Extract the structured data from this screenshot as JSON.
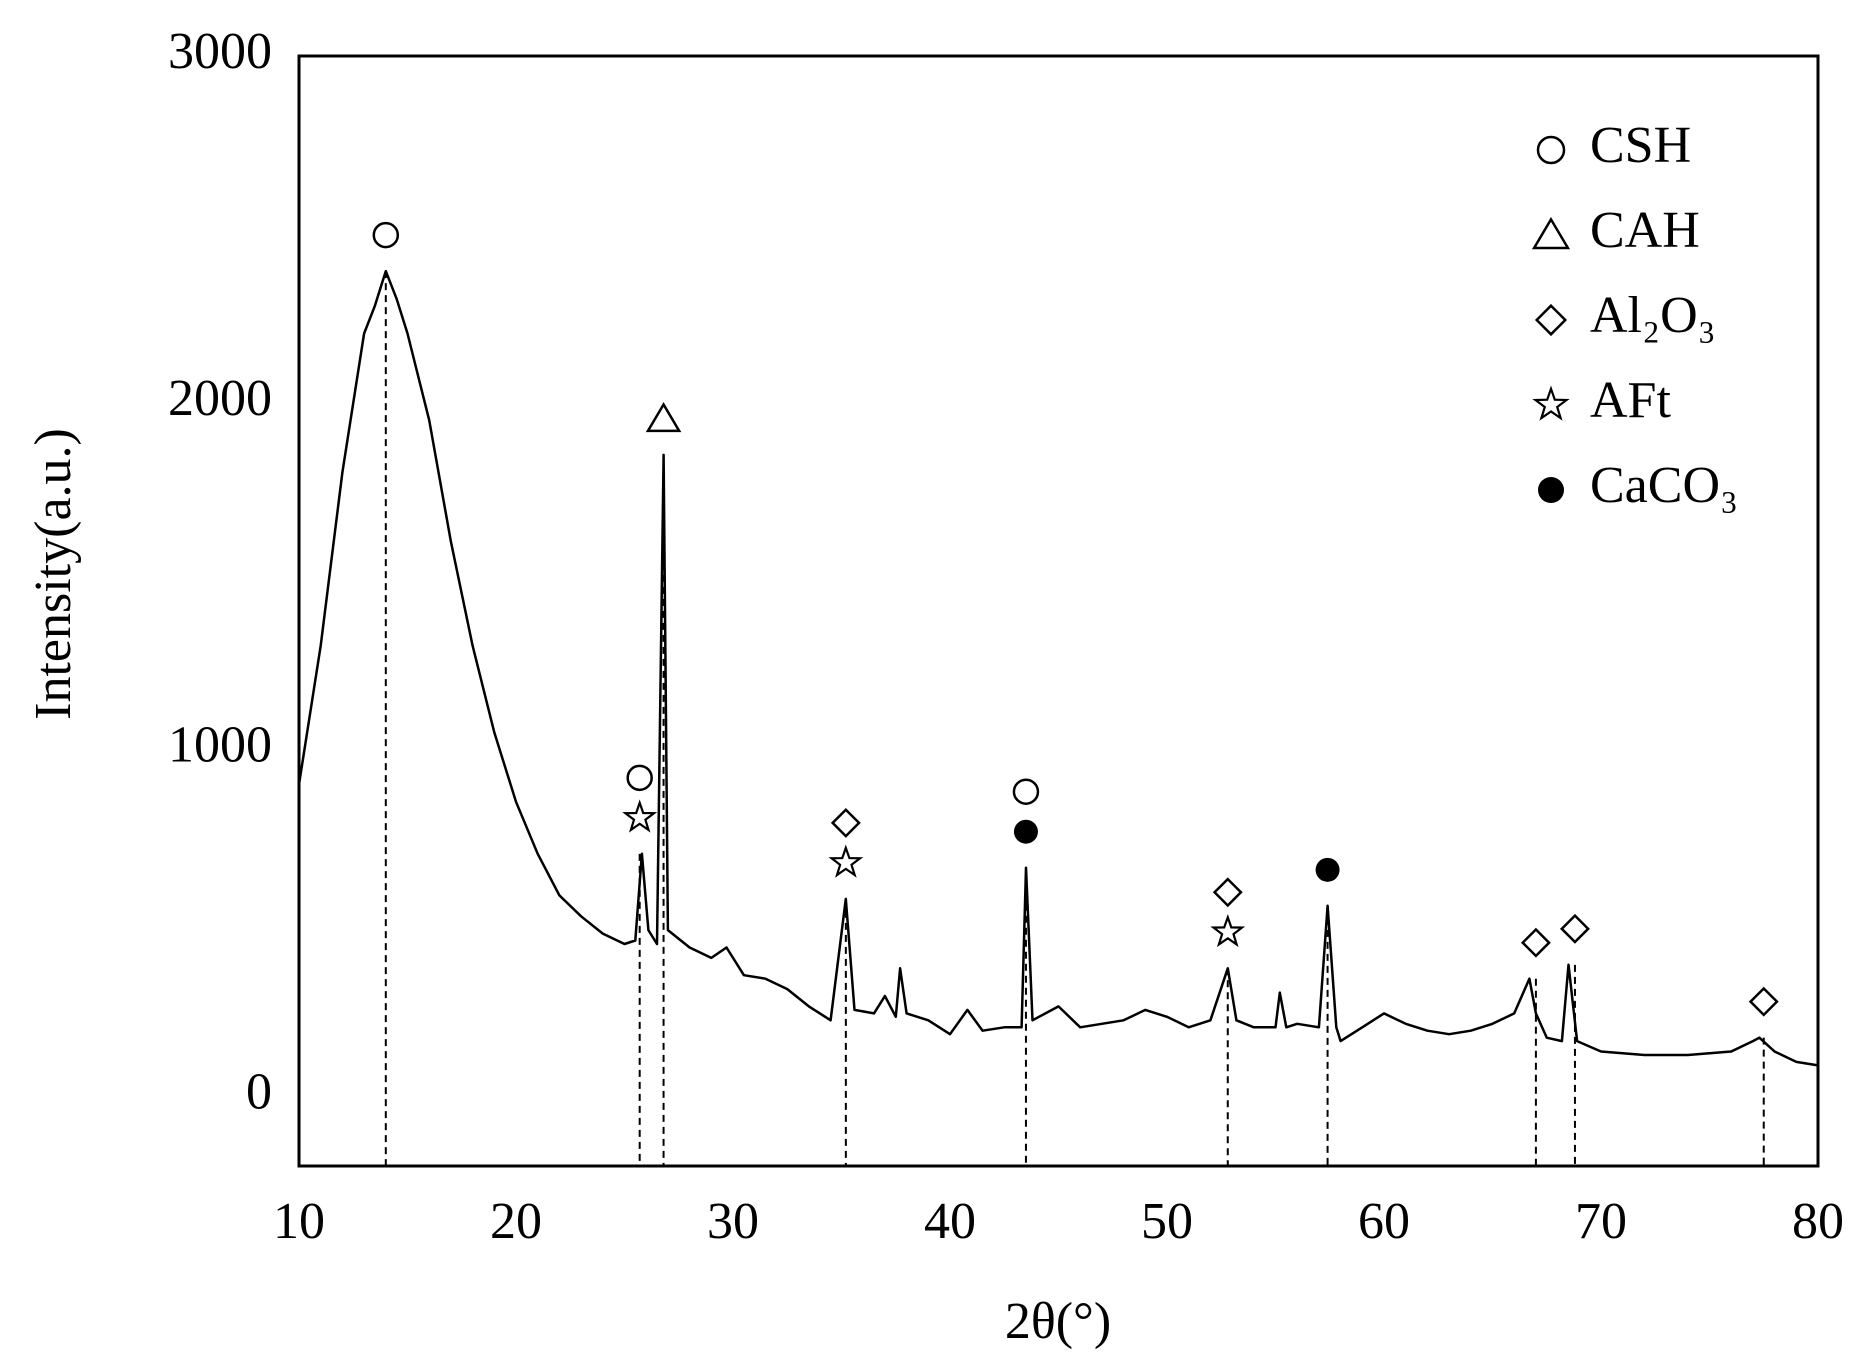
{
  "chart_data": {
    "type": "line",
    "xlabel": "2θ(°)",
    "ylabel": "Intensity(a.u.)",
    "xlim": [
      10,
      80
    ],
    "xticks": [
      10,
      20,
      30,
      40,
      50,
      60,
      70,
      80
    ],
    "ylim": [
      -200,
      3000
    ],
    "yticks": [
      0,
      1000,
      2000,
      3000
    ],
    "grid": false,
    "color": "#000000",
    "legend": "upper right",
    "x": [
      10,
      11,
      12,
      13,
      13.5,
      14,
      14.5,
      15,
      16,
      17,
      18,
      19,
      20,
      21,
      22,
      23,
      24,
      25,
      25.5,
      25.8,
      26.1,
      26.5,
      26.8,
      27,
      28,
      29,
      29.7,
      30.5,
      31.5,
      32.5,
      33.5,
      34.5,
      35.2,
      35.6,
      36.5,
      37,
      37.5,
      37.7,
      38,
      39,
      40,
      40.8,
      41.5,
      42.5,
      43.3,
      43.5,
      43.8,
      45,
      46,
      47,
      48,
      49,
      50,
      51,
      52,
      52.8,
      53.2,
      54,
      55,
      55.2,
      55.5,
      56,
      57,
      57.4,
      57.8,
      58,
      59,
      60,
      61,
      62,
      63,
      64,
      65,
      66,
      66.7,
      67,
      67.5,
      68.2,
      68.5,
      68.9,
      70,
      72,
      74,
      76,
      77,
      77.3,
      78,
      79,
      80
    ],
    "values": [
      900,
      1300,
      1800,
      2200,
      2280,
      2380,
      2300,
      2200,
      1950,
      1600,
      1300,
      1050,
      850,
      700,
      580,
      520,
      470,
      440,
      450,
      700,
      480,
      440,
      1850,
      480,
      430,
      400,
      430,
      350,
      340,
      310,
      260,
      220,
      570,
      250,
      240,
      290,
      230,
      370,
      240,
      220,
      180,
      250,
      190,
      200,
      200,
      660,
      220,
      260,
      200,
      210,
      220,
      250,
      230,
      200,
      220,
      370,
      220,
      200,
      200,
      300,
      200,
      210,
      200,
      550,
      200,
      160,
      200,
      240,
      210,
      190,
      180,
      190,
      210,
      240,
      340,
      240,
      170,
      160,
      380,
      160,
      130,
      120,
      120,
      130,
      160,
      170,
      130,
      100,
      90
    ],
    "phases": [
      {
        "name": "CSH",
        "marker": "circle"
      },
      {
        "name": "CAH",
        "marker": "triangle"
      },
      {
        "name": "Al₂O₃",
        "marker": "diamond"
      },
      {
        "name": "AFt",
        "marker": "star"
      },
      {
        "name": "CaCO₃",
        "marker": "dot"
      }
    ],
    "peaks": [
      {
        "x": 14,
        "y": 2380,
        "phases": [
          0
        ]
      },
      {
        "x": 25.7,
        "y": 700,
        "phases": [
          3,
          0
        ]
      },
      {
        "x": 26.8,
        "y": 1850,
        "phases": [
          1
        ]
      },
      {
        "x": 35.2,
        "y": 570,
        "phases": [
          3,
          2
        ]
      },
      {
        "x": 43.5,
        "y": 660,
        "phases": [
          4,
          0
        ]
      },
      {
        "x": 52.8,
        "y": 370,
        "phases": [
          3,
          2
        ]
      },
      {
        "x": 57.4,
        "y": 550,
        "phases": [
          4
        ]
      },
      {
        "x": 67,
        "y": 340,
        "phases": [
          2
        ]
      },
      {
        "x": 68.8,
        "y": 380,
        "phases": [
          2
        ]
      },
      {
        "x": 77.5,
        "y": 170,
        "phases": [
          2
        ]
      }
    ]
  }
}
